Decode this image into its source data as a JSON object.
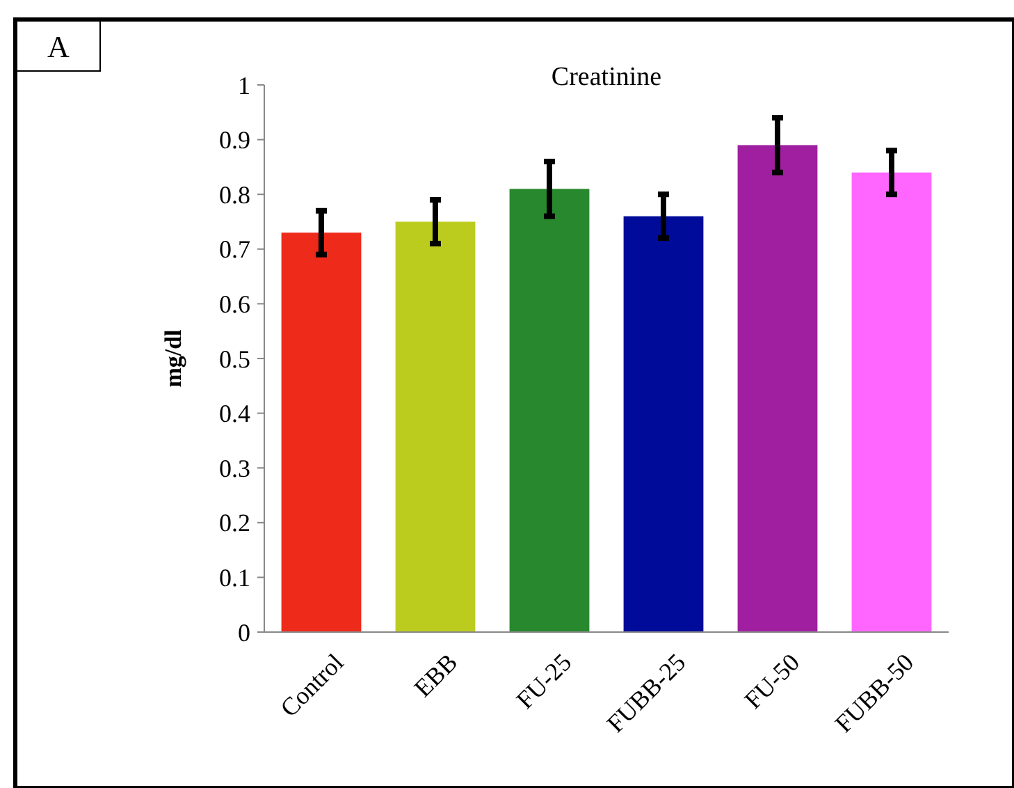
{
  "chart_data": {
    "type": "bar",
    "title": "Creatinine",
    "ylabel": "mg/dl",
    "annotations": [
      "A"
    ],
    "categories": [
      "Control",
      "EBB",
      "FU-25",
      "FUBB-25",
      "FU-50",
      "FUBB-50"
    ],
    "values": [
      0.73,
      0.75,
      0.81,
      0.76,
      0.89,
      0.84
    ],
    "colors": [
      "#ee2a1a",
      "#bccc1f",
      "#27882d",
      "#000b99",
      "#a01fa0",
      "#ff66ff"
    ],
    "errors": [
      0.04,
      0.04,
      0.05,
      0.04,
      0.05,
      0.04
    ],
    "ylim": [
      0,
      1
    ],
    "yticks": [
      0,
      0.1,
      0.2,
      0.3,
      0.4,
      0.5,
      0.6,
      0.7,
      0.8,
      0.9,
      1
    ],
    "grid": false
  }
}
